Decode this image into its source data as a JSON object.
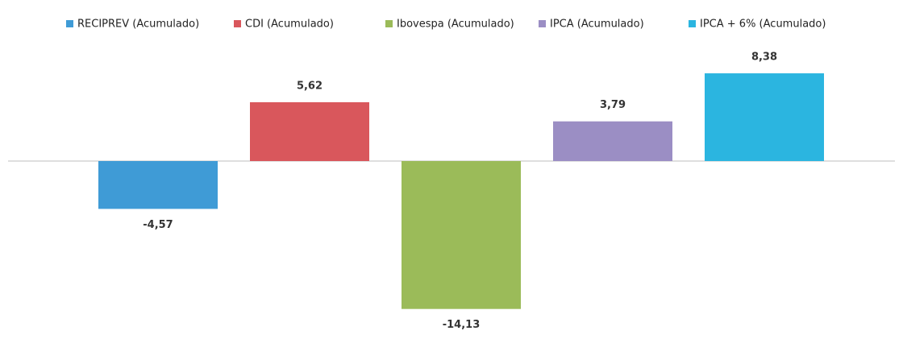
{
  "chart_data": {
    "type": "bar",
    "categories": [
      null
    ],
    "series": [
      {
        "name": "RECIPREV (Acumulado)",
        "color": "#3f9bd6",
        "values": [
          -4.57
        ],
        "value_labels": [
          "-4,57"
        ]
      },
      {
        "name": "CDI (Acumulado)",
        "color": "#d9575c",
        "values": [
          5.62
        ],
        "value_labels": [
          "5,62"
        ]
      },
      {
        "name": "Ibovespa (Acumulado)",
        "color": "#9bbb59",
        "values": [
          -14.13
        ],
        "value_labels": [
          "-14,13"
        ]
      },
      {
        "name": "IPCA (Acumulado)",
        "color": "#9b8ec4",
        "values": [
          3.79
        ],
        "value_labels": [
          "3,79"
        ]
      },
      {
        "name": "IPCA + 6% (Acumulado)",
        "color": "#2bb5e0",
        "values": [
          8.38
        ],
        "value_labels": [
          "8,38"
        ]
      }
    ],
    "ylim": [
      -16,
      11
    ],
    "legend": "top"
  }
}
